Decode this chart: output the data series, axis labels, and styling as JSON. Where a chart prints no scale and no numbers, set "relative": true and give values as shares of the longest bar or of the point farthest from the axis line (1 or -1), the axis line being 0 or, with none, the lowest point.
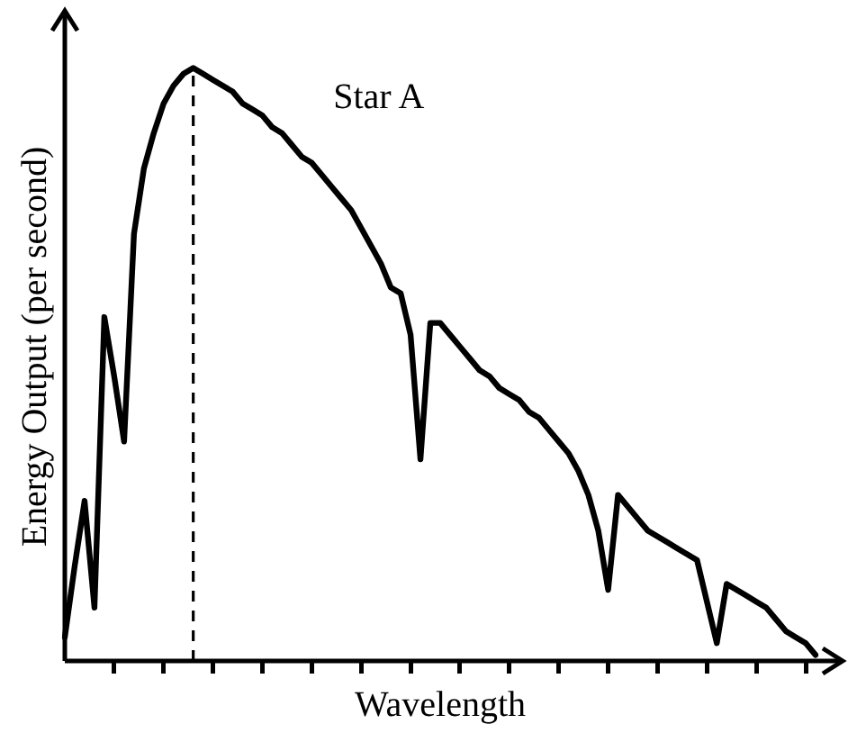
{
  "chart_data": {
    "type": "line",
    "xlabel": "Wavelength",
    "ylabel": "Energy Output (per second)",
    "relative": true,
    "categories": [
      null,
      null,
      null,
      null,
      null,
      null,
      null,
      null,
      null,
      null,
      null,
      null,
      null,
      null,
      null,
      null,
      null,
      null,
      null,
      null,
      null,
      null,
      null,
      null,
      null,
      null,
      null,
      null,
      null,
      null,
      null,
      null,
      null,
      null,
      null,
      null,
      null,
      null,
      null,
      null,
      null,
      null,
      null,
      null,
      null,
      null,
      null,
      null,
      null,
      null,
      null,
      null,
      null,
      null,
      null,
      null,
      null,
      null,
      null,
      null,
      null,
      null,
      null,
      null,
      null,
      null,
      null,
      null,
      null,
      null,
      null,
      null,
      null,
      null,
      null,
      null,
      null
    ],
    "series": [
      {
        "name": "Star A",
        "color": "#000000",
        "values": [
          0.04,
          0.16,
          0.27,
          0.09,
          0.58,
          0.48,
          0.37,
          0.72,
          0.83,
          0.89,
          0.94,
          0.97,
          0.99,
          1,
          0.99,
          0.98,
          0.97,
          0.96,
          0.94,
          0.93,
          0.92,
          0.9,
          0.89,
          0.87,
          0.85,
          0.84,
          0.82,
          0.8,
          0.78,
          0.76,
          0.73,
          0.7,
          0.67,
          0.63,
          0.62,
          0.55,
          0.34,
          0.57,
          0.57,
          0.55,
          0.53,
          0.51,
          0.49,
          0.48,
          0.46,
          0.45,
          0.44,
          0.42,
          0.41,
          0.39,
          0.37,
          0.35,
          0.32,
          0.28,
          0.22,
          0.12,
          0.28,
          0.26,
          0.24,
          0.22,
          0.21,
          0.2,
          0.19,
          0.18,
          0.17,
          0.1,
          0.03,
          0.13,
          0.12,
          0.11,
          0.1,
          0.09,
          0.07,
          0.05,
          0.04,
          0.03,
          0.01
        ]
      }
    ],
    "ref_lines": [
      {
        "axis": "x",
        "color": "#000000",
        "line_style": "dashed"
      }
    ],
    "grid": false,
    "legend": false,
    "marker": "none",
    "line_style": "solid",
    "tick_labels": false
  }
}
